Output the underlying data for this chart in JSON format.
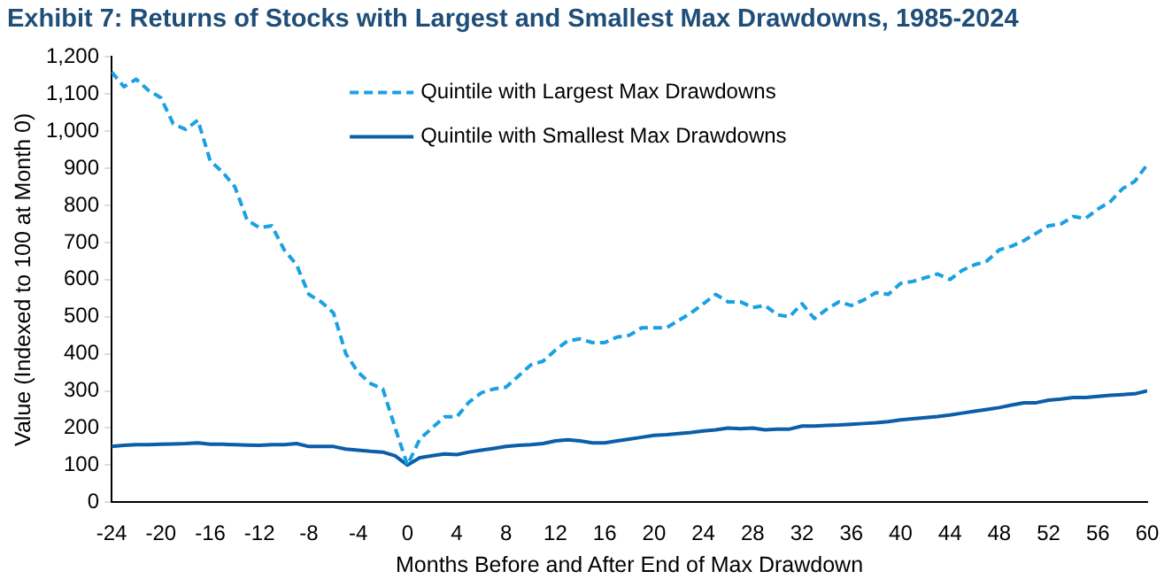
{
  "chart_data": {
    "type": "line",
    "title": "Exhibit 7: Returns of Stocks with Largest and Smallest Max Drawdowns, 1985-2024",
    "xlabel": "Months Before and After End of Max Drawdown",
    "ylabel": "Value (Indexed to 100 at Month 0)",
    "x": [
      -24,
      -23,
      -22,
      -21,
      -20,
      -19,
      -18,
      -17,
      -16,
      -15,
      -14,
      -13,
      -12,
      -11,
      -10,
      -9,
      -8,
      -7,
      -6,
      -5,
      -4,
      -3,
      -2,
      -1,
      0,
      1,
      2,
      3,
      4,
      5,
      6,
      7,
      8,
      9,
      10,
      11,
      12,
      13,
      14,
      15,
      16,
      17,
      18,
      19,
      20,
      21,
      22,
      23,
      24,
      25,
      26,
      27,
      28,
      29,
      30,
      31,
      32,
      33,
      34,
      35,
      36,
      37,
      38,
      39,
      40,
      41,
      42,
      43,
      44,
      45,
      46,
      47,
      48,
      49,
      50,
      51,
      52,
      53,
      54,
      55,
      56,
      57,
      58,
      59,
      60
    ],
    "series": [
      {
        "name": "Quintile with Largest Max Drawdowns",
        "color": "#1ba1e2",
        "line_style": "dashed",
        "values": [
          1160,
          1120,
          1140,
          1110,
          1090,
          1020,
          1005,
          1030,
          920,
          890,
          850,
          760,
          740,
          745,
          680,
          640,
          560,
          540,
          510,
          400,
          350,
          320,
          305,
          200,
          100,
          170,
          200,
          230,
          230,
          270,
          295,
          305,
          310,
          340,
          370,
          380,
          410,
          435,
          440,
          430,
          430,
          445,
          450,
          470,
          470,
          470,
          490,
          510,
          535,
          560,
          540,
          540,
          525,
          530,
          505,
          500,
          535,
          495,
          520,
          540,
          530,
          545,
          565,
          560,
          590,
          595,
          605,
          615,
          600,
          625,
          640,
          650,
          680,
          690,
          705,
          725,
          745,
          750,
          770,
          765,
          790,
          810,
          845,
          865,
          910
        ]
      },
      {
        "name": "Quintile with Smallest Max Drawdowns",
        "color": "#0b5ea8",
        "line_style": "solid",
        "values": [
          150,
          153,
          155,
          155,
          156,
          157,
          158,
          160,
          156,
          156,
          155,
          154,
          153,
          155,
          155,
          158,
          150,
          150,
          150,
          143,
          140,
          137,
          135,
          125,
          100,
          120,
          125,
          130,
          128,
          135,
          140,
          145,
          150,
          153,
          155,
          158,
          165,
          168,
          165,
          160,
          160,
          165,
          170,
          175,
          180,
          182,
          185,
          188,
          192,
          195,
          200,
          198,
          200,
          195,
          197,
          197,
          205,
          205,
          207,
          208,
          210,
          212,
          214,
          217,
          222,
          225,
          228,
          231,
          235,
          240,
          245,
          250,
          255,
          262,
          268,
          268,
          275,
          278,
          282,
          282,
          285,
          288,
          290,
          292,
          300
        ]
      }
    ],
    "xlim": [
      -24,
      60
    ],
    "xticks": [
      -24,
      -20,
      -16,
      -12,
      -8,
      -4,
      0,
      4,
      8,
      12,
      16,
      20,
      24,
      28,
      32,
      36,
      40,
      44,
      48,
      52,
      56,
      60
    ],
    "ylim": [
      0,
      1200
    ],
    "yticks": [
      0,
      100,
      200,
      300,
      400,
      500,
      600,
      700,
      800,
      900,
      {
        "value": 1000,
        "label": "1,000"
      },
      {
        "value": 1100,
        "label": "1,100"
      },
      {
        "value": 1200,
        "label": "1,200"
      }
    ],
    "grid": false,
    "legend": "top",
    "marker": "none"
  }
}
